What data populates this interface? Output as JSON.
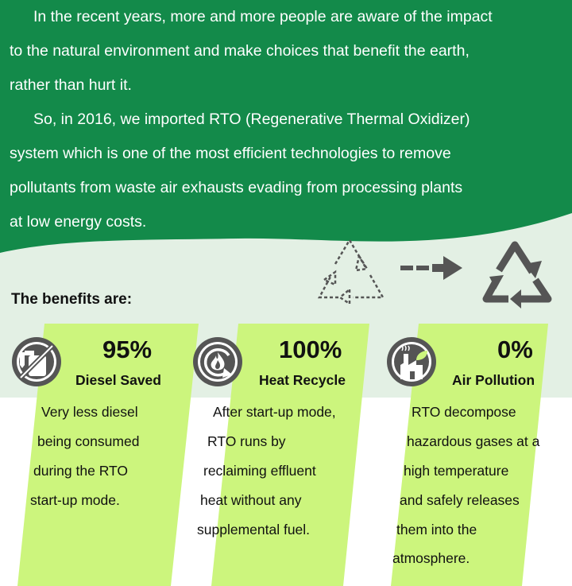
{
  "intro": {
    "lines": [
      "In the recent years, more and more people are aware of the impact",
      "to the natural environment and make choices that benefit the earth,",
      "rather than hurt it.",
      "So, in 2016, we imported RTO (Regenerative Thermal Oxidizer)",
      "system which is one of the most efficient technologies to remove",
      "pollutants from waste air exhausts evading from processing plants",
      "at low energy costs."
    ]
  },
  "benefits_title": "The benefits are:",
  "benefits": [
    {
      "percent": "95%",
      "label": "Diesel Saved",
      "icon": "no-fuel-icon",
      "lines": [
        "Very less diesel",
        "being consumed",
        "during the RTO",
        "start-up mode."
      ]
    },
    {
      "percent": "100%",
      "label": "Heat Recycle",
      "icon": "heat-recycle-icon",
      "lines": [
        "After start-up mode,",
        "RTO runs by",
        "reclaiming effluent",
        "heat without any",
        "supplemental fuel."
      ]
    },
    {
      "percent": "0%",
      "label": "Air Pollution",
      "icon": "clean-factory-icon",
      "lines": [
        "RTO decompose",
        "hazardous gases at a",
        "high temperature",
        "and safely releases",
        "them into the",
        "atmosphere."
      ]
    }
  ],
  "colors": {
    "green": "#138a4a",
    "light_green": "#e3f0e4",
    "lime": "#ccf57d",
    "gray": "#555555"
  }
}
